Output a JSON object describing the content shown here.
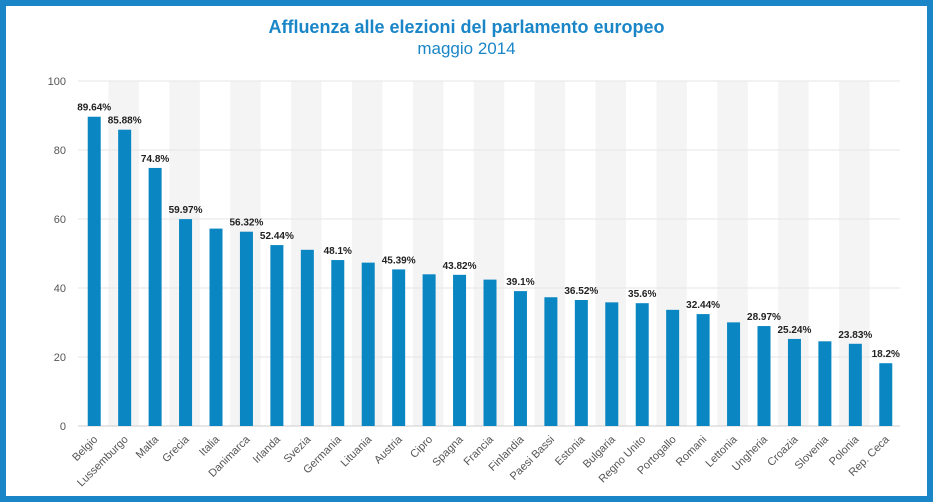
{
  "chart_data": {
    "type": "bar",
    "title": "Affluenza alle elezioni del parlamento europeo",
    "subtitle": "maggio 2014",
    "xlabel": "",
    "ylabel": "",
    "ylim": [
      0,
      100
    ],
    "yticks": [
      0,
      20,
      40,
      60,
      80,
      100
    ],
    "grid": true,
    "bar_color": "#0a86c2",
    "categories": [
      "Belgio",
      "Lussemburgo",
      "Malta",
      "Grecia",
      "Italia",
      "Danimarca",
      "Irlanda",
      "Svezia",
      "Germania",
      "Lituania",
      "Austria",
      "Cipro",
      "Spagna",
      "Francia",
      "Finlandia",
      "Paesi Bassi",
      "Estonia",
      "Bulgaria",
      "Regno Unito",
      "Portogallo",
      "Romani",
      "Lettonia",
      "Ungheria",
      "Croazia",
      "Slovenia",
      "Polonia",
      "Rep. Ceca"
    ],
    "values": [
      89.64,
      85.88,
      74.8,
      59.97,
      57.22,
      56.32,
      52.44,
      51.07,
      48.1,
      47.35,
      45.39,
      43.97,
      43.82,
      42.43,
      39.1,
      37.32,
      36.52,
      35.84,
      35.6,
      33.67,
      32.44,
      30.04,
      28.97,
      25.24,
      24.55,
      23.83,
      18.2
    ],
    "data_labels": [
      "89.64%",
      "85.88%",
      "74.8%",
      "59.97%",
      "",
      "56.32%",
      "52.44%",
      "",
      "48.1%",
      "",
      "45.39%",
      "",
      "43.82%",
      "",
      "39.1%",
      "",
      "36.52%",
      "",
      "35.6%",
      "",
      "32.44%",
      "",
      "28.97%",
      "25.24%",
      "",
      "23.83%",
      "18.2%"
    ]
  }
}
